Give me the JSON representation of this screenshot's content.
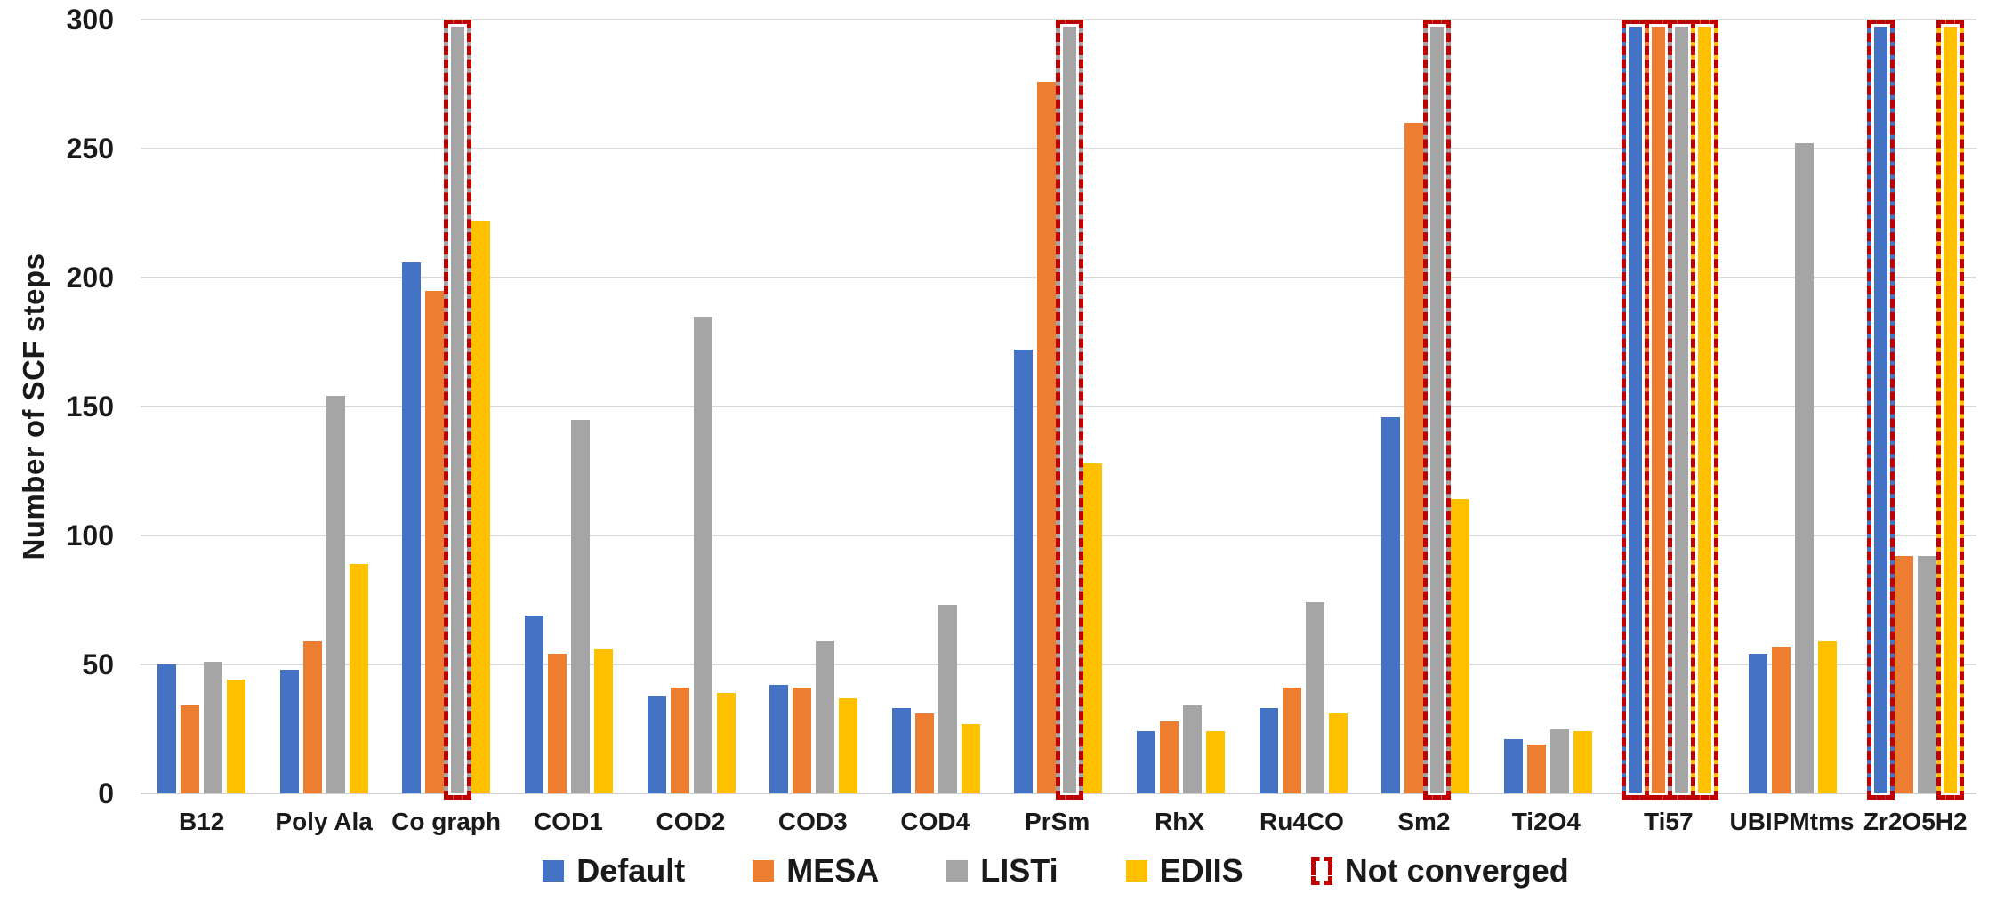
{
  "chart_data": {
    "type": "bar",
    "title": "",
    "ylabel": "Number of SCF steps",
    "xlabel": "",
    "ylim": [
      0,
      300
    ],
    "yticks": [
      0,
      50,
      100,
      150,
      200,
      250,
      300
    ],
    "grid": "horizontal",
    "grid_color": "#D9D9D9",
    "legend_position": "bottom",
    "bar_cap_value": 300,
    "categories": [
      "B12",
      "Poly Ala",
      "Co graph",
      "COD1",
      "COD2",
      "COD3",
      "COD4",
      "PrSm",
      "RhX",
      "Ru4CO",
      "Sm2",
      "Ti2O4",
      "Ti57",
      "UBIPMtms",
      "Zr2O5H2"
    ],
    "series": [
      {
        "name": "Default",
        "color": "#4472C4",
        "values": [
          50,
          48,
          206,
          69,
          38,
          42,
          33,
          172,
          24,
          33,
          146,
          21,
          300,
          54,
          300
        ],
        "not_converged": [
          false,
          false,
          false,
          false,
          false,
          false,
          false,
          false,
          false,
          false,
          false,
          false,
          true,
          false,
          true
        ]
      },
      {
        "name": "MESA",
        "color": "#ED7D31",
        "values": [
          34,
          59,
          195,
          54,
          41,
          41,
          31,
          276,
          28,
          41,
          260,
          19,
          300,
          57,
          92
        ],
        "not_converged": [
          false,
          false,
          false,
          false,
          false,
          false,
          false,
          false,
          false,
          false,
          false,
          false,
          true,
          false,
          false
        ]
      },
      {
        "name": "LISTi",
        "color": "#A5A5A5",
        "values": [
          51,
          154,
          300,
          145,
          185,
          59,
          73,
          300,
          34,
          74,
          300,
          25,
          300,
          252,
          92
        ],
        "not_converged": [
          false,
          false,
          true,
          false,
          false,
          false,
          false,
          true,
          false,
          false,
          true,
          false,
          true,
          false,
          false
        ]
      },
      {
        "name": "EDIIS",
        "color": "#FFC000",
        "values": [
          44,
          89,
          222,
          56,
          39,
          37,
          27,
          128,
          24,
          31,
          114,
          24,
          300,
          59,
          300
        ],
        "not_converged": [
          false,
          false,
          false,
          false,
          false,
          false,
          false,
          false,
          false,
          false,
          false,
          false,
          true,
          false,
          true
        ]
      }
    ],
    "not_converged_legend": {
      "label": "Not converged",
      "color": "#C00000"
    }
  }
}
